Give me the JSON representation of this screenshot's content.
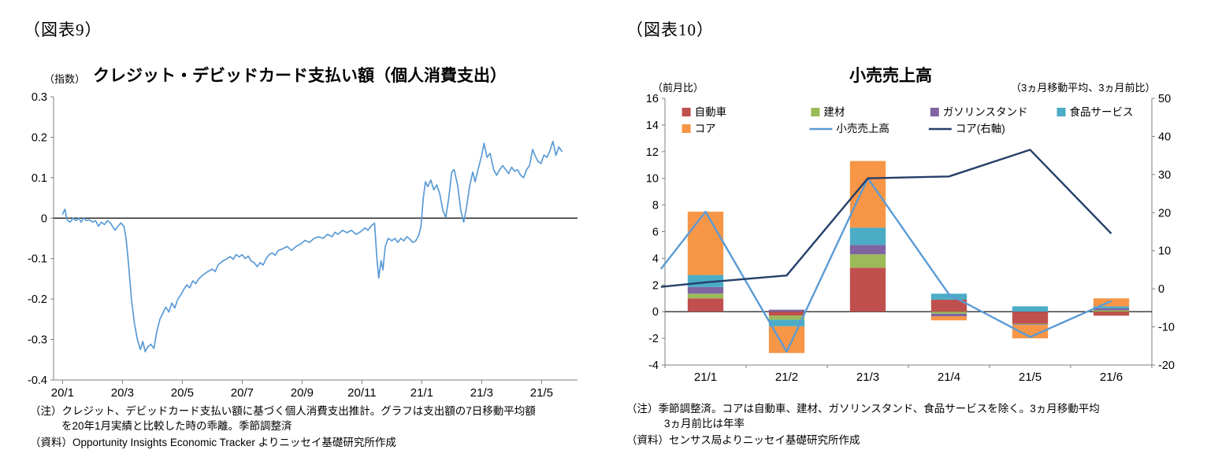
{
  "page": {
    "background": "#ffffff"
  },
  "fig9": {
    "label": "（図表9）",
    "notes": [
      "（注）クレジット、デビッドカード支払い額に基づく個人消費支出推計。グラフは支出額の7日移動平均額",
      "を20年1月実績と比較した時の乖離。季節調整済"
    ],
    "source": "（資料）Opportunity Insights Economic Tracker よりニッセイ基礎研究所作成"
  },
  "fig10": {
    "label": "（図表10）",
    "notes": [
      "（注）季節調整済。コアは自動車、建材、ガソリンスタンド、食品サービスを除く。3ヵ月移動平均",
      "3ヵ月前比は年率"
    ],
    "source": "（資料）センサス局よりニッセイ基礎研究所作成"
  },
  "chart_data": [
    {
      "id": "credit-debit-card-spending",
      "type": "line",
      "title": "クレジット・デビッドカード支払い額（個人消費支出）",
      "ylabel": "（指数）",
      "ylim": [
        -0.4,
        0.3
      ],
      "ytick_step": 0.1,
      "xlim": [
        -0.3,
        17.2
      ],
      "grid": "zero-line-only",
      "x_ticks": [
        {
          "pos": 0,
          "label": "20/1"
        },
        {
          "pos": 2,
          "label": "20/3"
        },
        {
          "pos": 4,
          "label": "20/5"
        },
        {
          "pos": 6,
          "label": "20/7"
        },
        {
          "pos": 8,
          "label": "20/9"
        },
        {
          "pos": 10,
          "label": "20/11"
        },
        {
          "pos": 12,
          "label": "21/1"
        },
        {
          "pos": 14,
          "label": "21/3"
        },
        {
          "pos": 16,
          "label": "21/5"
        }
      ],
      "series": [
        {
          "name": "クレジット・デビッドカード支払い額（7日移動平均、対20年1月乖離）",
          "color": "#5B9BD5",
          "points": [
            [
              0,
              0.01
            ],
            [
              0.08,
              0.022
            ],
            [
              0.15,
              -0.004
            ],
            [
              0.25,
              -0.01
            ],
            [
              0.35,
              0
            ],
            [
              0.45,
              -0.006
            ],
            [
              0.55,
              0
            ],
            [
              0.62,
              -0.01
            ],
            [
              0.7,
              0
            ],
            [
              0.8,
              -0.006
            ],
            [
              0.9,
              -0.004
            ],
            [
              1,
              -0.01
            ],
            [
              1.1,
              -0.006
            ],
            [
              1.2,
              -0.02
            ],
            [
              1.3,
              -0.01
            ],
            [
              1.4,
              -0.016
            ],
            [
              1.5,
              -0.006
            ],
            [
              1.6,
              -0.012
            ],
            [
              1.75,
              -0.03
            ],
            [
              1.85,
              -0.02
            ],
            [
              1.95,
              -0.012
            ],
            [
              2.05,
              -0.02
            ],
            [
              2.12,
              -0.05
            ],
            [
              2.2,
              -0.11
            ],
            [
              2.3,
              -0.2
            ],
            [
              2.4,
              -0.26
            ],
            [
              2.5,
              -0.3
            ],
            [
              2.6,
              -0.325
            ],
            [
              2.68,
              -0.305
            ],
            [
              2.76,
              -0.33
            ],
            [
              2.85,
              -0.318
            ],
            [
              2.95,
              -0.312
            ],
            [
              3.05,
              -0.322
            ],
            [
              3.15,
              -0.28
            ],
            [
              3.25,
              -0.25
            ],
            [
              3.35,
              -0.235
            ],
            [
              3.45,
              -0.22
            ],
            [
              3.55,
              -0.232
            ],
            [
              3.65,
              -0.21
            ],
            [
              3.75,
              -0.222
            ],
            [
              3.85,
              -0.2
            ],
            [
              3.95,
              -0.19
            ],
            [
              4.05,
              -0.176
            ],
            [
              4.15,
              -0.165
            ],
            [
              4.25,
              -0.172
            ],
            [
              4.35,
              -0.155
            ],
            [
              4.45,
              -0.162
            ],
            [
              4.55,
              -0.15
            ],
            [
              4.7,
              -0.14
            ],
            [
              4.85,
              -0.132
            ],
            [
              5,
              -0.126
            ],
            [
              5.1,
              -0.132
            ],
            [
              5.2,
              -0.115
            ],
            [
              5.35,
              -0.106
            ],
            [
              5.5,
              -0.1
            ],
            [
              5.6,
              -0.095
            ],
            [
              5.7,
              -0.102
            ],
            [
              5.8,
              -0.09
            ],
            [
              5.9,
              -0.096
            ],
            [
              6,
              -0.09
            ],
            [
              6.1,
              -0.1
            ],
            [
              6.2,
              -0.094
            ],
            [
              6.3,
              -0.106
            ],
            [
              6.4,
              -0.11
            ],
            [
              6.5,
              -0.12
            ],
            [
              6.6,
              -0.11
            ],
            [
              6.7,
              -0.116
            ],
            [
              6.8,
              -0.1
            ],
            [
              6.9,
              -0.09
            ],
            [
              7,
              -0.086
            ],
            [
              7.1,
              -0.092
            ],
            [
              7.2,
              -0.08
            ],
            [
              7.35,
              -0.076
            ],
            [
              7.5,
              -0.07
            ],
            [
              7.65,
              -0.08
            ],
            [
              7.8,
              -0.07
            ],
            [
              7.95,
              -0.064
            ],
            [
              8.1,
              -0.055
            ],
            [
              8.25,
              -0.06
            ],
            [
              8.4,
              -0.05
            ],
            [
              8.55,
              -0.046
            ],
            [
              8.7,
              -0.05
            ],
            [
              8.85,
              -0.04
            ],
            [
              9,
              -0.046
            ],
            [
              9.1,
              -0.035
            ],
            [
              9.2,
              -0.04
            ],
            [
              9.35,
              -0.03
            ],
            [
              9.5,
              -0.036
            ],
            [
              9.65,
              -0.03
            ],
            [
              9.8,
              -0.04
            ],
            [
              9.95,
              -0.034
            ],
            [
              10.1,
              -0.024
            ],
            [
              10.2,
              -0.03
            ],
            [
              10.3,
              -0.02
            ],
            [
              10.42,
              -0.012
            ],
            [
              10.5,
              -0.1
            ],
            [
              10.56,
              -0.148
            ],
            [
              10.64,
              -0.105
            ],
            [
              10.7,
              -0.128
            ],
            [
              10.78,
              -0.07
            ],
            [
              10.88,
              -0.05
            ],
            [
              11,
              -0.056
            ],
            [
              11.1,
              -0.05
            ],
            [
              11.2,
              -0.06
            ],
            [
              11.3,
              -0.05
            ],
            [
              11.4,
              -0.056
            ],
            [
              11.5,
              -0.046
            ],
            [
              11.6,
              -0.052
            ],
            [
              11.7,
              -0.06
            ],
            [
              11.8,
              -0.056
            ],
            [
              11.9,
              -0.042
            ],
            [
              11.97,
              -0.02
            ],
            [
              12.05,
              0.05
            ],
            [
              12.12,
              0.09
            ],
            [
              12.2,
              0.078
            ],
            [
              12.3,
              0.094
            ],
            [
              12.4,
              0.07
            ],
            [
              12.5,
              0.082
            ],
            [
              12.6,
              0.06
            ],
            [
              12.7,
              0.02
            ],
            [
              12.8,
              0.002
            ],
            [
              12.9,
              0.05
            ],
            [
              13,
              0.114
            ],
            [
              13.08,
              0.12
            ],
            [
              13.2,
              0.08
            ],
            [
              13.3,
              0.02
            ],
            [
              13.4,
              -0.01
            ],
            [
              13.5,
              0.03
            ],
            [
              13.6,
              0.08
            ],
            [
              13.7,
              0.114
            ],
            [
              13.78,
              0.09
            ],
            [
              13.88,
              0.12
            ],
            [
              14,
              0.155
            ],
            [
              14.08,
              0.185
            ],
            [
              14.18,
              0.15
            ],
            [
              14.28,
              0.16
            ],
            [
              14.4,
              0.12
            ],
            [
              14.5,
              0.106
            ],
            [
              14.6,
              0.12
            ],
            [
              14.7,
              0.13
            ],
            [
              14.8,
              0.12
            ],
            [
              14.9,
              0.11
            ],
            [
              15,
              0.126
            ],
            [
              15.1,
              0.116
            ],
            [
              15.2,
              0.12
            ],
            [
              15.3,
              0.106
            ],
            [
              15.4,
              0.1
            ],
            [
              15.5,
              0.12
            ],
            [
              15.6,
              0.13
            ],
            [
              15.7,
              0.17
            ],
            [
              15.78,
              0.155
            ],
            [
              15.88,
              0.14
            ],
            [
              15.98,
              0.135
            ],
            [
              16.08,
              0.156
            ],
            [
              16.18,
              0.15
            ],
            [
              16.28,
              0.166
            ],
            [
              16.38,
              0.19
            ],
            [
              16.48,
              0.155
            ],
            [
              16.58,
              0.176
            ],
            [
              16.68,
              0.165
            ]
          ]
        }
      ]
    },
    {
      "id": "retail-sales",
      "type": "bar+line",
      "title": "小売売上高",
      "ylabel_left": "（前月比）",
      "ylabel_right": "（3ヵ月移動平均、3ヵ月前比）",
      "ylim_left": [
        -4,
        16
      ],
      "ytick_step_left": 2,
      "ylim_right": [
        -20,
        50
      ],
      "ytick_step_right": 10,
      "categories": [
        "21/1",
        "21/2",
        "21/3",
        "21/4",
        "21/5",
        "21/6"
      ],
      "bar_series": [
        {
          "name": "自動車",
          "color": "#C0504D",
          "values": [
            1.0,
            -0.3,
            3.3,
            0.9,
            -0.9,
            -0.3
          ]
        },
        {
          "name": "建材",
          "color": "#9BBB59",
          "values": [
            0.35,
            -0.3,
            1.0,
            -0.15,
            -0.05,
            0.1
          ]
        },
        {
          "name": "ガソリンスタンド",
          "color": "#8064A2",
          "values": [
            0.5,
            0.15,
            0.7,
            -0.2,
            -0.05,
            0.15
          ]
        },
        {
          "name": "食品サービス",
          "color": "#4BACC6",
          "values": [
            0.9,
            -0.5,
            1.3,
            0.45,
            0.4,
            0.15
          ]
        },
        {
          "name": "コア",
          "color": "#F79646",
          "values": [
            4.75,
            -2.0,
            5.0,
            -0.3,
            -1.0,
            0.6
          ]
        }
      ],
      "line_series": [
        {
          "name": "小売売上高",
          "color": "#5B9BD5",
          "axis": "left",
          "x": [
            -0.55,
            0,
            1,
            2,
            3,
            4,
            5
          ],
          "values": [
            3.2,
            7.5,
            -3.0,
            10.0,
            1.3,
            -1.9,
            0.8
          ]
        },
        {
          "name": "コア(右軸)",
          "color": "#243F69",
          "axis": "right",
          "x": [
            -0.55,
            0,
            1,
            2,
            3,
            4,
            5
          ],
          "values": [
            0.5,
            1.7,
            3.5,
            29.0,
            29.5,
            36.5,
            14.5
          ]
        }
      ],
      "legend_rows": [
        [
          {
            "series": "bar",
            "index": 0
          },
          {
            "series": "bar",
            "index": 1
          },
          {
            "series": "bar",
            "index": 2
          },
          {
            "series": "bar",
            "index": 3
          }
        ],
        [
          {
            "series": "bar",
            "index": 4
          },
          {
            "series": "line",
            "index": 0
          },
          {
            "series": "line",
            "index": 1
          }
        ]
      ]
    }
  ]
}
